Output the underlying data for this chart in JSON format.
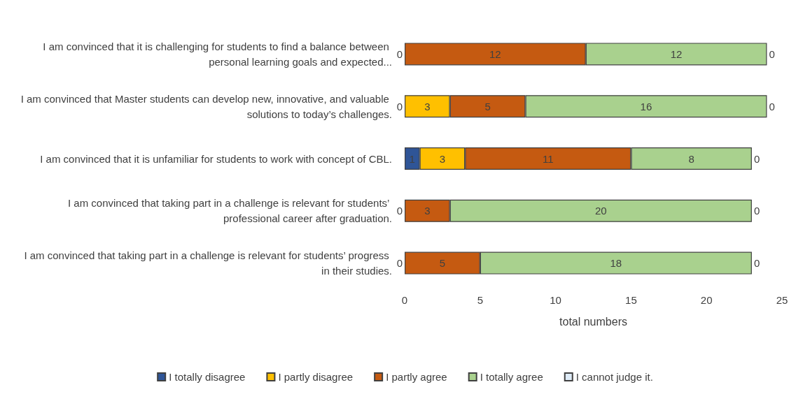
{
  "chart_data": {
    "type": "bar",
    "orientation": "horizontal",
    "stacked": true,
    "xlabel": "total numbers",
    "categories": [
      "I am convinced that it is challenging for students to find a balance between personal learning goals and expected...",
      "I am convinced that Master students can develop new, innovative, and valuable solutions to today’s challenges.",
      "I am convinced that it is unfamiliar for students to work with concept of CBL.",
      "I am convinced that taking part in a challenge is relevant for students’ professional career after graduation.",
      "I am convinced that taking part in a challenge is relevant for students’ progress in their studies."
    ],
    "series": [
      {
        "name": "I totally disagree",
        "color": "#2f5597",
        "values": [
          null,
          null,
          1,
          null,
          null
        ]
      },
      {
        "name": "I partly disagree",
        "color": "#ffc000",
        "values": [
          null,
          3,
          3,
          null,
          null
        ]
      },
      {
        "name": "I partly agree",
        "color": "#c55a11",
        "values": [
          12,
          5,
          11,
          3,
          5
        ]
      },
      {
        "name": "I totally agree",
        "color": "#a9d18e",
        "values": [
          12,
          16,
          8,
          20,
          18
        ]
      },
      {
        "name": "I cannot judge it.",
        "color": "#deebf7",
        "values": [
          null,
          null,
          null,
          null,
          null
        ]
      }
    ],
    "annotations": [
      {
        "text": "0",
        "x": 0,
        "y": "I am convinced that it is challenging for students to find a balance between personal learning goals and expected..."
      },
      {
        "text": "0",
        "x": 24,
        "y": "I am convinced that it is challenging for students to find a balance between personal learning goals and expected..."
      },
      {
        "text": "0",
        "x": 0,
        "y": "I am convinced that Master students can develop new, innovative, and valuable solutions to today’s challenges."
      },
      {
        "text": "0",
        "x": 24,
        "y": "I am convinced that Master students can develop new, innovative, and valuable solutions to today’s challenges."
      },
      {
        "text": "0",
        "x": 23,
        "y": "I am convinced that it is unfamiliar for students to work with concept of CBL."
      },
      {
        "text": "0",
        "x": 0,
        "y": "I am convinced that taking part in a challenge is relevant for students’ professional career after graduation."
      },
      {
        "text": "0",
        "x": 23,
        "y": "I am convinced that taking part in a challenge is relevant for students’ professional career after graduation."
      },
      {
        "text": "0",
        "x": 0,
        "y": "I am convinced that taking part in a challenge is relevant for students’ progress in their studies."
      },
      {
        "text": "0",
        "x": 23,
        "y": "I am convinced that taking part in a challenge is relevant for students’ progress in their studies."
      }
    ],
    "xlim": [
      0,
      25
    ],
    "xticks": [
      0,
      5,
      10,
      15,
      20,
      25
    ],
    "data_labels": true,
    "legend": "bottom",
    "grid": false
  }
}
